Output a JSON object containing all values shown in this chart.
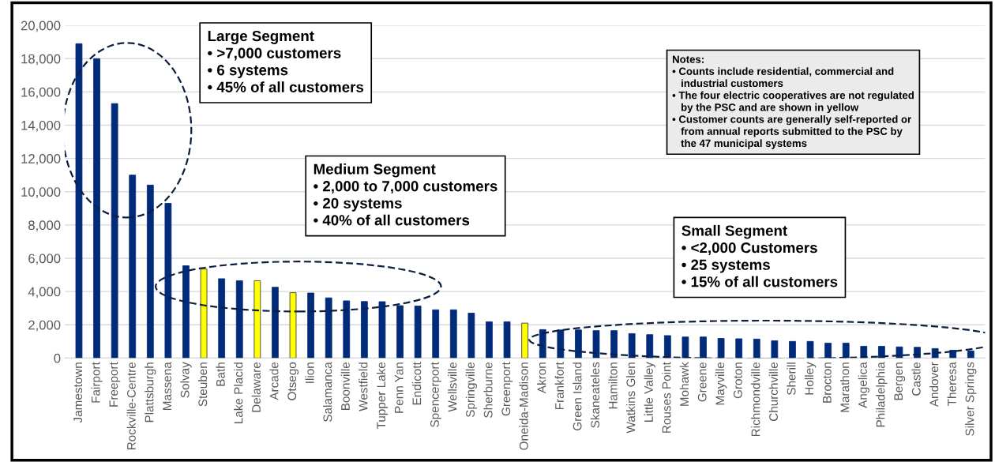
{
  "chart_data": {
    "type": "bar",
    "categories": [
      "Jamestown",
      "Fairport",
      "Freeport",
      "Rockville-Centre",
      "Plattsburgh",
      "Massena",
      "Solvay",
      "Steuben",
      "Bath",
      "Lake Placid",
      "Delaware",
      "Arcade",
      "Otsego",
      "Ilion",
      "Salamanca",
      "Boonville",
      "Westfield",
      "Tupper Lake",
      "Penn Yan",
      "Endicott",
      "Spencerport",
      "Wellsville",
      "Springville",
      "Sherburne",
      "Greenport",
      "Oneida-Madison",
      "Akron",
      "Frankfort",
      "Green Island",
      "Skaneateles",
      "Hamilton",
      "Watkins Glen",
      "Little Valley",
      "Rouses Point",
      "Mohawk",
      "Greene",
      "Mayville",
      "Groton",
      "Richmondville",
      "Churchville",
      "Sherill",
      "Holley",
      "Brocton",
      "Marathon",
      "Angelica",
      "Philadelphia",
      "Bergen",
      "Castle",
      "Andover",
      "Theresa",
      "Silver Springs"
    ],
    "values": [
      18900,
      18000,
      15300,
      11000,
      10400,
      9300,
      5550,
      5350,
      4770,
      4650,
      4650,
      4260,
      3930,
      3910,
      3620,
      3440,
      3400,
      3390,
      3150,
      3130,
      2900,
      2900,
      2700,
      2180,
      2180,
      2100,
      1710,
      1690,
      1690,
      1650,
      1650,
      1470,
      1410,
      1350,
      1270,
      1270,
      1180,
      1160,
      1140,
      1040,
      1000,
      1000,
      900,
      900,
      710,
      710,
      670,
      650,
      570,
      470,
      430
    ],
    "colors": [
      "#002b7a",
      "#002b7a",
      "#002b7a",
      "#002b7a",
      "#002b7a",
      "#002b7a",
      "#002b7a",
      "#ffff00",
      "#002b7a",
      "#002b7a",
      "#ffff00",
      "#002b7a",
      "#ffff00",
      "#002b7a",
      "#002b7a",
      "#002b7a",
      "#002b7a",
      "#002b7a",
      "#002b7a",
      "#002b7a",
      "#002b7a",
      "#002b7a",
      "#002b7a",
      "#002b7a",
      "#002b7a",
      "#ffff00",
      "#002b7a",
      "#002b7a",
      "#002b7a",
      "#002b7a",
      "#002b7a",
      "#002b7a",
      "#002b7a",
      "#002b7a",
      "#002b7a",
      "#002b7a",
      "#002b7a",
      "#002b7a",
      "#002b7a",
      "#002b7a",
      "#002b7a",
      "#002b7a",
      "#002b7a",
      "#002b7a",
      "#002b7a",
      "#002b7a",
      "#002b7a",
      "#002b7a",
      "#002b7a",
      "#002b7a",
      "#002b7a"
    ],
    "ylim": [
      0,
      20000
    ],
    "yticks": [
      {
        "value": 0,
        "label": "0"
      },
      {
        "value": 2000,
        "label": "2,000"
      },
      {
        "value": 4000,
        "label": "4,000"
      },
      {
        "value": 6000,
        "label": "6,000"
      },
      {
        "value": 8000,
        "label": "8,000"
      },
      {
        "value": 10000,
        "label": "10,000"
      },
      {
        "value": 12000,
        "label": "12,000"
      },
      {
        "value": 14000,
        "label": "14,000"
      },
      {
        "value": 16000,
        "label": "16,000"
      },
      {
        "value": 18000,
        "label": "18,000"
      },
      {
        "value": 20000,
        "label": "20,000"
      }
    ],
    "grid": "y",
    "annotations": [
      "Large Segment\n• >7,000 customers\n• 6 systems\n• 45% of all customers",
      "Medium Segment\n• 2,000 to 7,000 customers\n• 20 systems\n• 40% of all customers",
      "Small Segment\n• <2,000 Customers\n• 25 systems\n• 15% of all customers",
      "Notes:\n• Counts include residential, commercial and\n   industrial customers\n• The four electric cooperatives are not regulated\n   by the PSC and are shown in yellow\n• Customer counts are generally self-reported or\n   from annual reports submitted to the PSC by\n   the 47 municipal systems"
    ]
  }
}
